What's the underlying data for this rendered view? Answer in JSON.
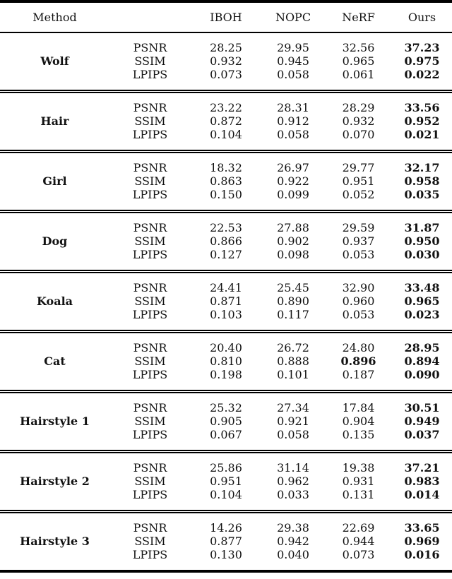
{
  "colors": {
    "background": "#ffffff",
    "text": "#121212",
    "rule": "#000000"
  },
  "table": {
    "header": {
      "method_label": "Method",
      "columns": [
        "IBOH",
        "NOPC",
        "NeRF",
        "Ours"
      ]
    },
    "sections": [
      {
        "name": "Wolf",
        "rows": [
          {
            "metric": "PSNR",
            "values": [
              "28.25",
              "29.95",
              "32.56",
              "37.23"
            ],
            "bold": [
              false,
              false,
              false,
              true
            ]
          },
          {
            "metric": "SSIM",
            "values": [
              "0.932",
              "0.945",
              "0.965",
              "0.975"
            ],
            "bold": [
              false,
              false,
              false,
              true
            ]
          },
          {
            "metric": "LPIPS",
            "values": [
              "0.073",
              "0.058",
              "0.061",
              "0.022"
            ],
            "bold": [
              false,
              false,
              false,
              true
            ]
          }
        ]
      },
      {
        "name": "Hair",
        "rows": [
          {
            "metric": "PSNR",
            "values": [
              "23.22",
              "28.31",
              "28.29",
              "33.56"
            ],
            "bold": [
              false,
              false,
              false,
              true
            ]
          },
          {
            "metric": "SSIM",
            "values": [
              "0.872",
              "0.912",
              "0.932",
              "0.952"
            ],
            "bold": [
              false,
              false,
              false,
              true
            ]
          },
          {
            "metric": "LPIPS",
            "values": [
              "0.104",
              "0.058",
              "0.070",
              "0.021"
            ],
            "bold": [
              false,
              false,
              false,
              true
            ]
          }
        ]
      },
      {
        "name": "Girl",
        "rows": [
          {
            "metric": "PSNR",
            "values": [
              "18.32",
              "26.97",
              "29.77",
              "32.17"
            ],
            "bold": [
              false,
              false,
              false,
              true
            ]
          },
          {
            "metric": "SSIM",
            "values": [
              "0.863",
              "0.922",
              "0.951",
              "0.958"
            ],
            "bold": [
              false,
              false,
              false,
              true
            ]
          },
          {
            "metric": "LPIPS",
            "values": [
              "0.150",
              "0.099",
              "0.052",
              "0.035"
            ],
            "bold": [
              false,
              false,
              false,
              true
            ]
          }
        ]
      },
      {
        "name": "Dog",
        "rows": [
          {
            "metric": "PSNR",
            "values": [
              "22.53",
              "27.88",
              "29.59",
              "31.87"
            ],
            "bold": [
              false,
              false,
              false,
              true
            ]
          },
          {
            "metric": "SSIM",
            "values": [
              "0.866",
              "0.902",
              "0.937",
              "0.950"
            ],
            "bold": [
              false,
              false,
              false,
              true
            ]
          },
          {
            "metric": "LPIPS",
            "values": [
              "0.127",
              "0.098",
              "0.053",
              "0.030"
            ],
            "bold": [
              false,
              false,
              false,
              true
            ]
          }
        ]
      },
      {
        "name": "Koala",
        "rows": [
          {
            "metric": "PSNR",
            "values": [
              "24.41",
              "25.45",
              "32.90",
              "33.48"
            ],
            "bold": [
              false,
              false,
              false,
              true
            ]
          },
          {
            "metric": "SSIM",
            "values": [
              "0.871",
              "0.890",
              "0.960",
              "0.965"
            ],
            "bold": [
              false,
              false,
              false,
              true
            ]
          },
          {
            "metric": "LPIPS",
            "values": [
              "0.103",
              "0.117",
              "0.053",
              "0.023"
            ],
            "bold": [
              false,
              false,
              false,
              true
            ]
          }
        ]
      },
      {
        "name": "Cat",
        "rows": [
          {
            "metric": "PSNR",
            "values": [
              "20.40",
              "26.72",
              "24.80",
              "28.95"
            ],
            "bold": [
              false,
              false,
              false,
              true
            ]
          },
          {
            "metric": "SSIM",
            "values": [
              "0.810",
              "0.888",
              "0.896",
              "0.894"
            ],
            "bold": [
              false,
              false,
              true,
              true
            ]
          },
          {
            "metric": "LPIPS",
            "values": [
              "0.198",
              "0.101",
              "0.187",
              "0.090"
            ],
            "bold": [
              false,
              false,
              false,
              true
            ]
          }
        ]
      },
      {
        "name": "Hairstyle 1",
        "rows": [
          {
            "metric": "PSNR",
            "values": [
              "25.32",
              "27.34",
              "17.84",
              "30.51"
            ],
            "bold": [
              false,
              false,
              false,
              true
            ]
          },
          {
            "metric": "SSIM",
            "values": [
              "0.905",
              "0.921",
              "0.904",
              "0.949"
            ],
            "bold": [
              false,
              false,
              false,
              true
            ]
          },
          {
            "metric": "LPIPS",
            "values": [
              "0.067",
              "0.058",
              "0.135",
              "0.037"
            ],
            "bold": [
              false,
              false,
              false,
              true
            ]
          }
        ]
      },
      {
        "name": "Hairstyle 2",
        "rows": [
          {
            "metric": "PSNR",
            "values": [
              "25.86",
              "31.14",
              "19.38",
              "37.21"
            ],
            "bold": [
              false,
              false,
              false,
              true
            ]
          },
          {
            "metric": "SSIM",
            "values": [
              "0.951",
              "0.962",
              "0.931",
              "0.983"
            ],
            "bold": [
              false,
              false,
              false,
              true
            ]
          },
          {
            "metric": "LPIPS",
            "values": [
              "0.104",
              "0.033",
              "0.131",
              "0.014"
            ],
            "bold": [
              false,
              false,
              false,
              true
            ]
          }
        ]
      },
      {
        "name": "Hairstyle 3",
        "rows": [
          {
            "metric": "PSNR",
            "values": [
              "14.26",
              "29.38",
              "22.69",
              "33.65"
            ],
            "bold": [
              false,
              false,
              false,
              true
            ]
          },
          {
            "metric": "SSIM",
            "values": [
              "0.877",
              "0.942",
              "0.944",
              "0.969"
            ],
            "bold": [
              false,
              false,
              false,
              true
            ]
          },
          {
            "metric": "LPIPS",
            "values": [
              "0.130",
              "0.040",
              "0.073",
              "0.016"
            ],
            "bold": [
              false,
              false,
              false,
              true
            ]
          }
        ]
      }
    ]
  }
}
